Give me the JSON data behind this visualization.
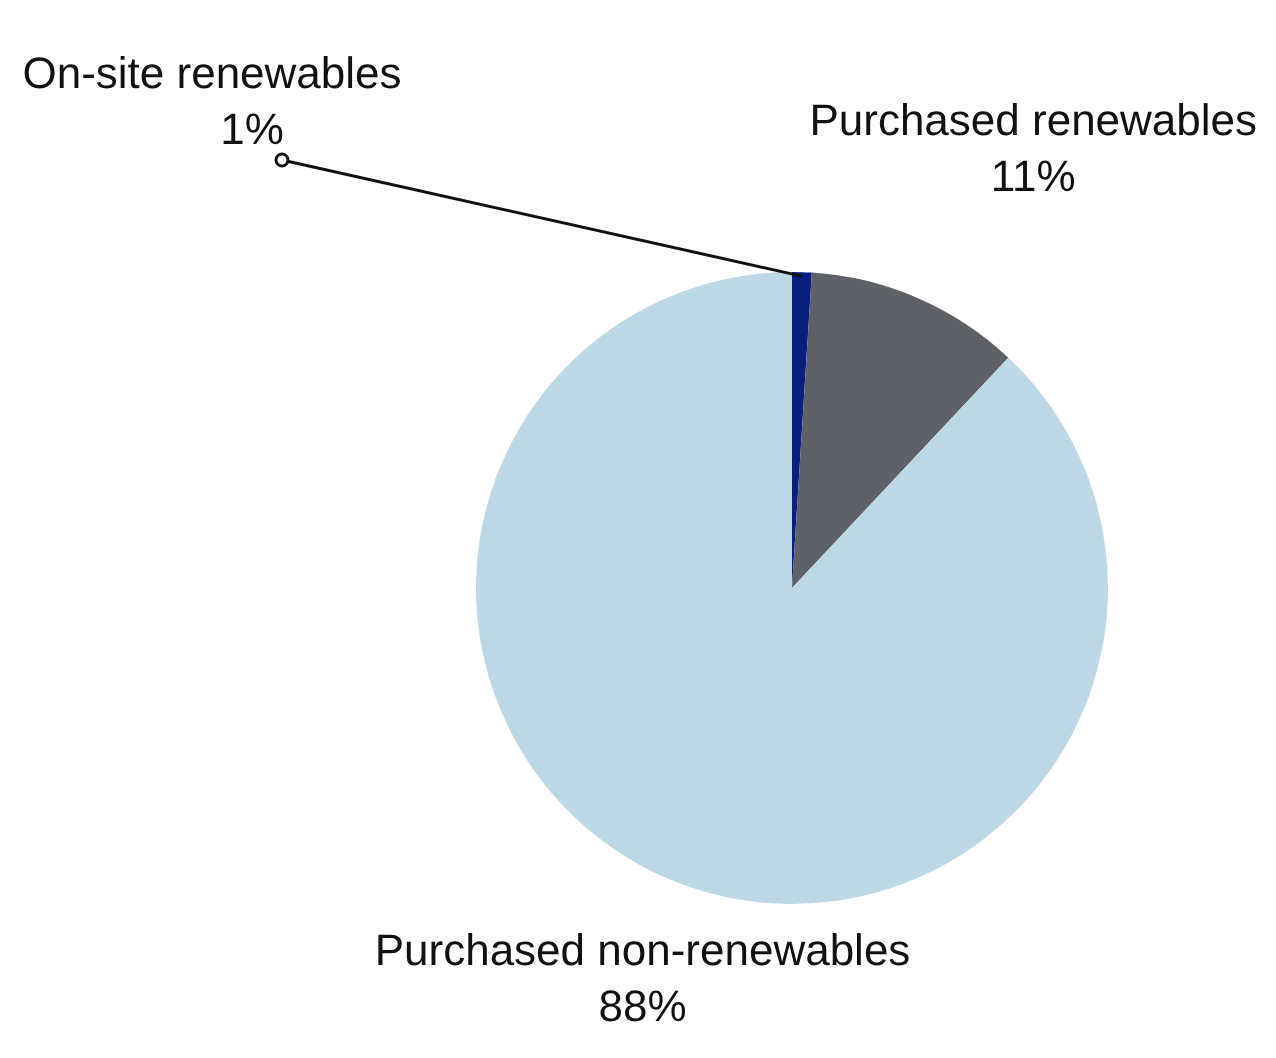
{
  "chart_data": {
    "type": "pie",
    "categories": [
      "On-site renewables",
      "Purchased renewables",
      "Purchased non-renewables"
    ],
    "values": [
      1,
      11,
      88
    ],
    "value_labels": [
      "1%",
      "11%",
      "88%"
    ],
    "colors": [
      "#0b1f7c",
      "#5e6166",
      "#bed7e5"
    ],
    "legend": false
  }
}
